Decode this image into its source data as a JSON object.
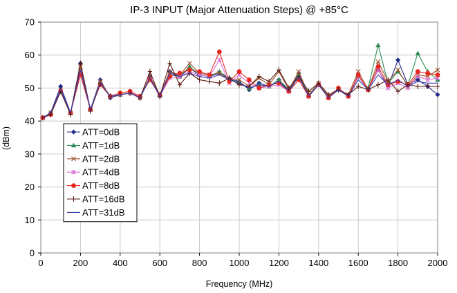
{
  "chart_data": {
    "type": "line",
    "title": "IP-3 INPUT (Major Attenuation Steps) @ +85°C",
    "xlabel": "Frequency (MHz)",
    "ylabel": "(dBm)",
    "xlim": [
      0,
      2000
    ],
    "ylim": [
      0,
      70
    ],
    "xticks": [
      0,
      200,
      400,
      600,
      800,
      1000,
      1200,
      1400,
      1600,
      1800,
      2000
    ],
    "yticks": [
      0,
      10,
      20,
      30,
      40,
      50,
      60,
      70
    ],
    "grid": true,
    "legend_position": "left-middle",
    "x": [
      10,
      50,
      100,
      150,
      200,
      250,
      300,
      350,
      400,
      450,
      500,
      550,
      600,
      650,
      700,
      750,
      800,
      850,
      900,
      950,
      1000,
      1050,
      1100,
      1150,
      1200,
      1250,
      1300,
      1350,
      1400,
      1450,
      1500,
      1550,
      1600,
      1650,
      1700,
      1750,
      1800,
      1850,
      1900,
      1950,
      2000
    ],
    "series": [
      {
        "name": "ATT=0dB",
        "color": "#1f2a8a",
        "marker": "diamond",
        "values": [
          41.0,
          42.5,
          50.5,
          42.5,
          57.5,
          43.5,
          52.5,
          47.0,
          48.0,
          48.5,
          47.0,
          53.5,
          47.5,
          55.0,
          53.5,
          56.0,
          54.0,
          53.5,
          54.5,
          53.0,
          52.0,
          49.5,
          51.5,
          50.5,
          52.5,
          49.0,
          54.5,
          47.5,
          51.0,
          47.0,
          49.5,
          47.5,
          53.5,
          49.5,
          55.5,
          50.5,
          58.5,
          51.0,
          52.5,
          50.5,
          48.0
        ]
      },
      {
        "name": "ATT=1dB",
        "color": "#2e8b57",
        "marker": "triangle",
        "values": [
          41.0,
          42.5,
          49.0,
          42.5,
          56.0,
          43.5,
          52.0,
          47.5,
          48.0,
          48.5,
          47.5,
          53.0,
          48.0,
          54.0,
          53.5,
          56.5,
          54.0,
          53.5,
          55.0,
          53.0,
          51.5,
          50.0,
          51.0,
          50.5,
          52.5,
          49.5,
          54.0,
          48.0,
          51.0,
          47.5,
          49.5,
          48.0,
          53.5,
          50.0,
          63.0,
          51.5,
          55.0,
          51.0,
          60.5,
          55.0,
          52.5
        ]
      },
      {
        "name": "ATT=2dB",
        "color": "#a0522d",
        "marker": "x",
        "values": [
          41.0,
          42.5,
          49.5,
          42.5,
          56.5,
          43.5,
          52.0,
          47.5,
          48.0,
          48.5,
          47.0,
          53.5,
          48.0,
          55.0,
          54.0,
          57.5,
          54.5,
          54.0,
          54.5,
          52.5,
          52.5,
          50.5,
          53.0,
          51.0,
          55.0,
          49.5,
          55.0,
          48.0,
          51.5,
          47.5,
          49.5,
          48.0,
          55.0,
          49.5,
          58.0,
          52.0,
          55.5,
          50.5,
          54.0,
          53.5,
          55.5
        ]
      },
      {
        "name": "ATT=4dB",
        "color": "#da70d6",
        "marker": "asterisk",
        "values": [
          41.0,
          42.0,
          49.0,
          42.5,
          55.0,
          43.5,
          51.5,
          47.5,
          48.0,
          48.5,
          47.5,
          52.5,
          47.5,
          53.0,
          53.5,
          55.0,
          54.0,
          53.5,
          58.5,
          51.5,
          54.0,
          51.5,
          50.0,
          50.5,
          51.0,
          49.0,
          52.5,
          47.5,
          51.0,
          47.0,
          49.5,
          47.5,
          53.5,
          49.5,
          55.5,
          50.0,
          51.5,
          50.0,
          53.5,
          52.5,
          53.0
        ]
      },
      {
        "name": "ATT=8dB",
        "color": "#e8281e",
        "marker": "circle",
        "values": [
          41.0,
          42.0,
          49.0,
          42.5,
          54.0,
          43.5,
          51.0,
          47.5,
          48.5,
          49.0,
          47.5,
          52.5,
          48.0,
          53.5,
          54.5,
          55.5,
          55.0,
          54.0,
          61.0,
          52.0,
          55.0,
          52.5,
          50.0,
          51.0,
          51.5,
          49.0,
          52.5,
          47.5,
          51.0,
          47.0,
          50.0,
          47.5,
          54.0,
          49.5,
          56.5,
          51.0,
          52.0,
          51.0,
          55.0,
          54.5,
          54.0
        ]
      },
      {
        "name": "ATT=16dB",
        "color": "#5a1a10",
        "marker": "plus",
        "values": [
          41.0,
          42.0,
          49.0,
          42.0,
          57.5,
          43.0,
          51.5,
          47.5,
          48.0,
          48.5,
          47.0,
          55.0,
          47.5,
          57.5,
          51.0,
          54.5,
          52.5,
          52.0,
          51.5,
          53.0,
          51.0,
          50.5,
          53.5,
          52.0,
          55.5,
          50.0,
          53.5,
          49.0,
          51.5,
          48.0,
          49.5,
          48.0,
          50.5,
          49.5,
          51.0,
          52.5,
          49.0,
          51.0,
          50.5,
          50.5,
          50.5
        ]
      },
      {
        "name": "ATT=31dB",
        "color": "#3a3aa8",
        "marker": "line",
        "values": [
          41.0,
          42.5,
          49.5,
          42.5,
          55.5,
          43.5,
          51.5,
          47.5,
          48.0,
          48.5,
          47.0,
          53.0,
          47.5,
          54.5,
          53.5,
          54.5,
          53.5,
          53.0,
          54.0,
          52.5,
          51.5,
          50.0,
          51.0,
          50.5,
          52.0,
          49.0,
          53.5,
          47.5,
          51.0,
          47.0,
          49.5,
          47.5,
          52.5,
          49.5,
          54.0,
          51.0,
          52.5,
          50.5,
          52.0,
          51.5,
          51.5
        ]
      }
    ]
  }
}
